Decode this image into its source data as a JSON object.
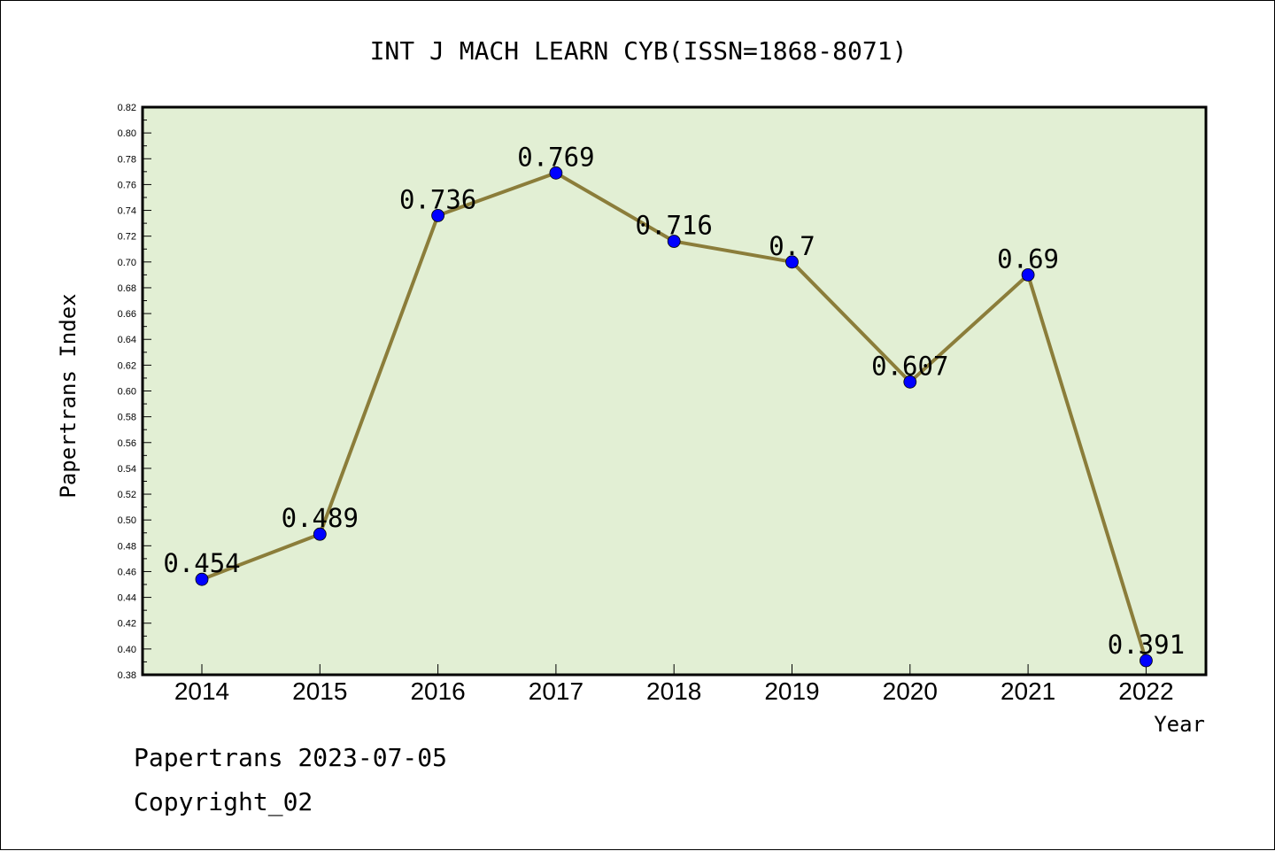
{
  "chart_data": {
    "type": "line",
    "title": "INT J MACH LEARN CYB(ISSN=1868-8071)",
    "xlabel": "Year",
    "ylabel": "Papertrans Index",
    "categories": [
      "2014",
      "2015",
      "2016",
      "2017",
      "2018",
      "2019",
      "2020",
      "2021",
      "2022"
    ],
    "series": [
      {
        "values": [
          0.454,
          0.489,
          0.736,
          0.769,
          0.716,
          0.7,
          0.607,
          0.69,
          0.391
        ],
        "data_labels": [
          "0.454",
          "0.489",
          "0.736",
          "0.769",
          "0.716",
          "0.7",
          "0.607",
          "0.69",
          "0.391"
        ]
      }
    ],
    "ylim": [
      0.38,
      0.82
    ],
    "yticks": [
      "0.38",
      "0.40",
      "0.42",
      "0.44",
      "0.46",
      "0.48",
      "0.50",
      "0.52",
      "0.54",
      "0.56",
      "0.58",
      "0.60",
      "0.62",
      "0.64",
      "0.66",
      "0.68",
      "0.70",
      "0.72",
      "0.74",
      "0.76",
      "0.78",
      "0.80",
      "0.82"
    ],
    "grid": false,
    "colors": {
      "plot_background": "#e2efd4",
      "line": "#8b7d3a",
      "marker": "#0000ff"
    }
  },
  "footer": {
    "line1": "Papertrans 2023-07-05",
    "line2": "Copyright_02"
  }
}
